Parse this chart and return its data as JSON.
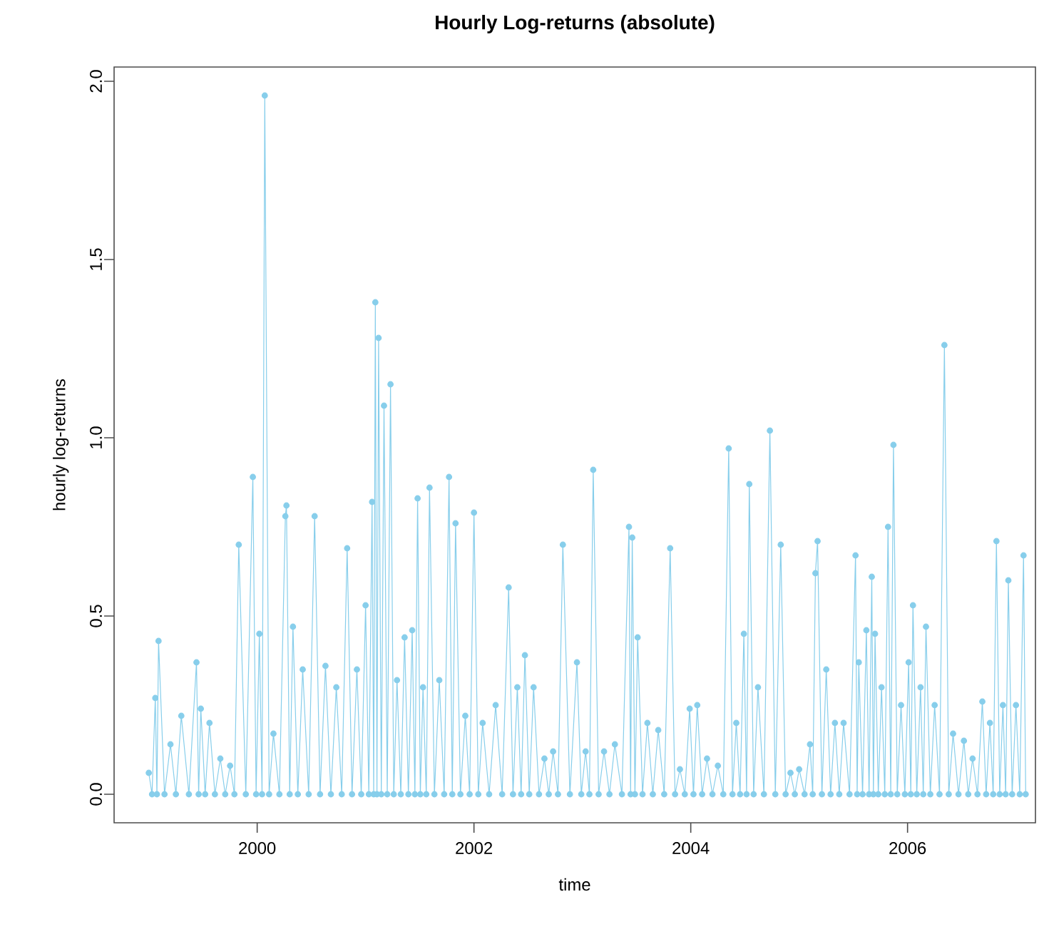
{
  "chart_data": {
    "type": "line",
    "title": "Hourly Log-returns (absolute)",
    "xlabel": "time",
    "ylabel": "hourly log-returns",
    "xlim": [
      1998.68,
      2007.18
    ],
    "ylim": [
      -0.08,
      2.04
    ],
    "xticks": [
      2000,
      2002,
      2004,
      2006
    ],
    "yticks": [
      {
        "value": 0,
        "label": "0.0"
      },
      0.5,
      {
        "value": 1,
        "label": "1.0"
      },
      1.5,
      {
        "value": 2,
        "label": "2.0"
      }
    ],
    "marker": "circle",
    "line_style": "solid",
    "series": [
      {
        "color": "#87ceeb",
        "x": [
          1999.0,
          1999.03,
          1999.06,
          1999.075,
          1999.09,
          1999.145,
          1999.2,
          1999.25,
          1999.3,
          1999.37,
          1999.44,
          1999.46,
          1999.48,
          1999.52,
          1999.56,
          1999.61,
          1999.66,
          1999.705,
          1999.75,
          1999.79,
          1999.83,
          1999.895,
          1999.96,
          1999.99,
          2000.02,
          2000.045,
          2000.07,
          2000.11,
          2000.15,
          2000.205,
          2000.26,
          2000.27,
          2000.3,
          2000.33,
          2000.375,
          2000.42,
          2000.475,
          2000.53,
          2000.58,
          2000.63,
          2000.68,
          2000.73,
          2000.78,
          2000.83,
          2000.875,
          2000.92,
          2000.96,
          2001.0,
          2001.03,
          2001.06,
          2001.075,
          2001.09,
          2001.105,
          2001.12,
          2001.145,
          2001.17,
          2001.2,
          2001.23,
          2001.26,
          2001.29,
          2001.325,
          2001.36,
          2001.395,
          2001.43,
          2001.455,
          2001.48,
          2001.505,
          2001.53,
          2001.56,
          2001.59,
          2001.635,
          2001.68,
          2001.725,
          2001.77,
          2001.8,
          2001.83,
          2001.875,
          2001.92,
          2001.96,
          2002.0,
          2002.04,
          2002.08,
          2002.14,
          2002.2,
          2002.26,
          2002.32,
          2002.36,
          2002.4,
          2002.435,
          2002.47,
          2002.51,
          2002.55,
          2002.6,
          2002.65,
          2002.69,
          2002.73,
          2002.775,
          2002.82,
          2002.885,
          2002.95,
          2002.99,
          2003.03,
          2003.065,
          2003.1,
          2003.15,
          2003.2,
          2003.25,
          2003.3,
          2003.365,
          2003.43,
          2003.445,
          2003.46,
          2003.485,
          2003.51,
          2003.555,
          2003.6,
          2003.65,
          2003.7,
          2003.755,
          2003.81,
          2003.855,
          2003.9,
          2003.945,
          2003.99,
          2004.025,
          2004.06,
          2004.105,
          2004.15,
          2004.2,
          2004.25,
          2004.3,
          2004.35,
          2004.385,
          2004.42,
          2004.455,
          2004.49,
          2004.515,
          2004.54,
          2004.58,
          2004.62,
          2004.675,
          2004.73,
          2004.78,
          2004.83,
          2004.875,
          2004.92,
          2004.96,
          2005.0,
          2005.05,
          2005.1,
          2005.125,
          2005.15,
          2005.17,
          2005.21,
          2005.25,
          2005.29,
          2005.33,
          2005.37,
          2005.41,
          2005.465,
          2005.52,
          2005.535,
          2005.55,
          2005.585,
          2005.62,
          2005.645,
          2005.67,
          2005.685,
          2005.7,
          2005.73,
          2005.76,
          2005.79,
          2005.82,
          2005.845,
          2005.87,
          2005.905,
          2005.94,
          2005.975,
          2006.01,
          2006.03,
          2006.05,
          2006.085,
          2006.12,
          2006.145,
          2006.17,
          2006.21,
          2006.25,
          2006.295,
          2006.34,
          2006.38,
          2006.42,
          2006.47,
          2006.52,
          2006.56,
          2006.6,
          2006.645,
          2006.69,
          2006.725,
          2006.76,
          2006.79,
          2006.82,
          2006.85,
          2006.88,
          2006.905,
          2006.93,
          2006.965,
          2007.0,
          2007.035,
          2007.07,
          2007.09
        ],
        "values": [
          0.06,
          0,
          0.27,
          0,
          0.43,
          0,
          0.14,
          0,
          0.22,
          0,
          0.37,
          0,
          0.24,
          0,
          0.2,
          0,
          0.1,
          0,
          0.08,
          0,
          0.7,
          0,
          0.89,
          0,
          0.45,
          0,
          1.96,
          0,
          0.17,
          0,
          0.78,
          0.81,
          0,
          0.47,
          0,
          0.35,
          0,
          0.78,
          0,
          0.36,
          0,
          0.3,
          0,
          0.69,
          0,
          0.35,
          0,
          0.53,
          0,
          0.82,
          0,
          1.38,
          0,
          1.28,
          0,
          1.09,
          0,
          1.15,
          0,
          0.32,
          0,
          0.44,
          0,
          0.46,
          0,
          0.83,
          0,
          0.3,
          0,
          0.86,
          0,
          0.32,
          0,
          0.89,
          0,
          0.76,
          0,
          0.22,
          0,
          0.79,
          0,
          0.2,
          0,
          0.25,
          0,
          0.58,
          0,
          0.3,
          0,
          0.39,
          0,
          0.3,
          0,
          0.1,
          0,
          0.12,
          0,
          0.7,
          0,
          0.37,
          0,
          0.12,
          0,
          0.91,
          0,
          0.12,
          0,
          0.14,
          0,
          0.75,
          0,
          0.72,
          0,
          0.44,
          0,
          0.2,
          0,
          0.18,
          0,
          0.69,
          0,
          0.07,
          0,
          0.24,
          0,
          0.25,
          0,
          0.1,
          0,
          0.08,
          0,
          0.97,
          0,
          0.2,
          0,
          0.45,
          0,
          0.87,
          0,
          0.3,
          0,
          1.02,
          0,
          0.7,
          0,
          0.06,
          0,
          0.07,
          0,
          0.14,
          0,
          0.62,
          0.71,
          0,
          0.35,
          0,
          0.2,
          0,
          0.2,
          0,
          0.67,
          0,
          0.37,
          0,
          0.46,
          0,
          0.61,
          0,
          0.45,
          0,
          0.3,
          0,
          0.75,
          0,
          0.98,
          0,
          0.25,
          0,
          0.37,
          0,
          0.53,
          0,
          0.3,
          0,
          0.47,
          0,
          0.25,
          0,
          1.26,
          0,
          0.17,
          0,
          0.15,
          0,
          0.1,
          0,
          0.26,
          0,
          0.2,
          0,
          0.71,
          0,
          0.25,
          0,
          0.6,
          0,
          0.25,
          0,
          0.67,
          0
        ]
      }
    ]
  }
}
